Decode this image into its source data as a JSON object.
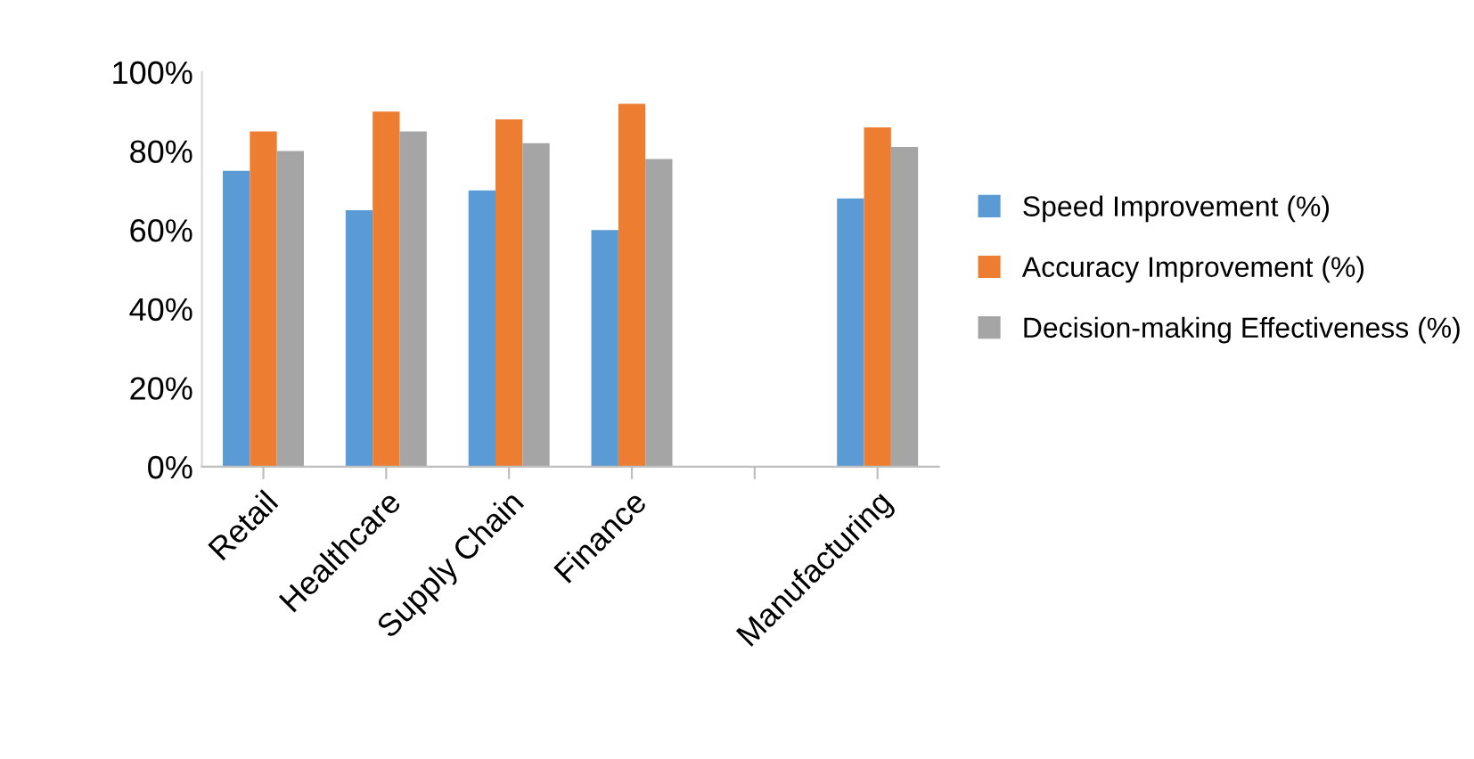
{
  "chart_data": {
    "type": "bar",
    "categories": [
      "Retail",
      "Healthcare",
      "Supply Chain",
      "Finance",
      null,
      "Manufacturing"
    ],
    "series": [
      {
        "name": "Speed Improvement (%)",
        "color": "#5b9bd5",
        "values": [
          75,
          65,
          70,
          60,
          null,
          68
        ]
      },
      {
        "name": "Accuracy Improvement (%)",
        "color": "#ed7d31",
        "values": [
          85,
          90,
          88,
          92,
          null,
          86
        ]
      },
      {
        "name": "Decision-making Effectiveness (%)",
        "color": "#a5a5a5",
        "values": [
          80,
          85,
          82,
          78,
          null,
          81
        ]
      }
    ],
    "ylim": [
      0,
      100
    ],
    "yticks": [
      {
        "value": 0,
        "label": "0%"
      },
      {
        "value": 20,
        "label": "20%"
      },
      {
        "value": 40,
        "label": "40%"
      },
      {
        "value": 60,
        "label": "60%"
      },
      {
        "value": 80,
        "label": "80%"
      },
      {
        "value": 100,
        "label": "100%"
      }
    ],
    "legend": "right"
  }
}
